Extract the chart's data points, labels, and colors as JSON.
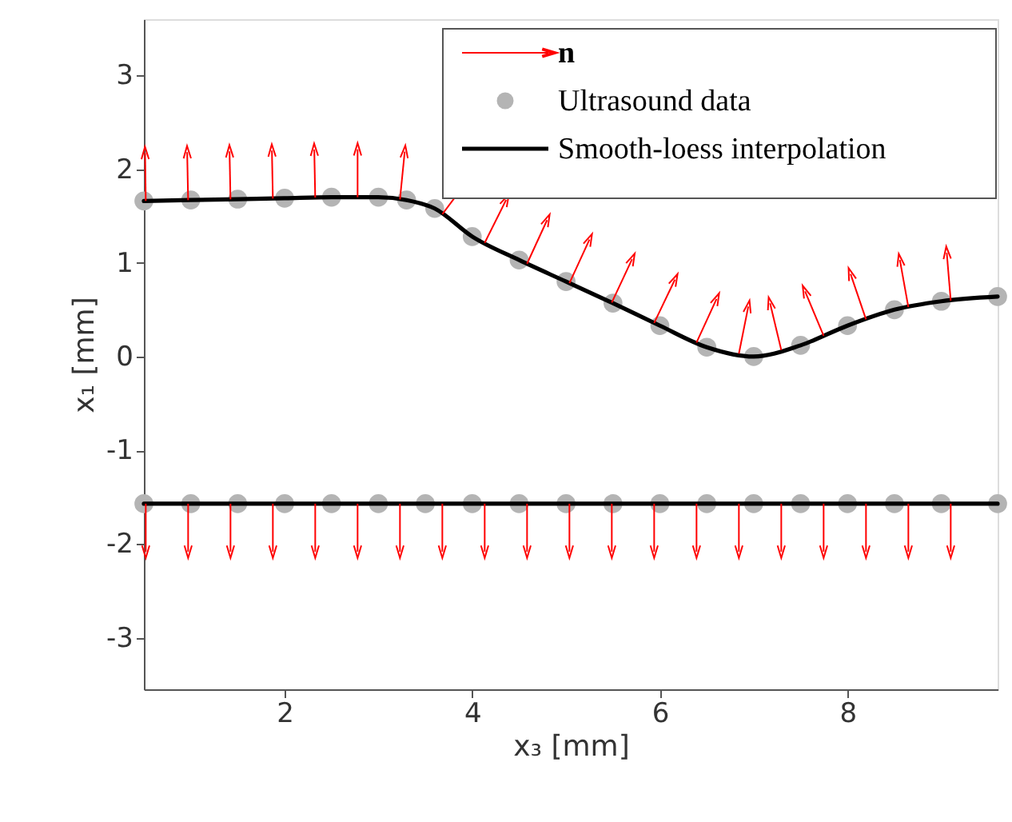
{
  "chart_data": {
    "type": "line",
    "xlabel": "x₃ [mm]",
    "ylabel": "x₁ [mm]",
    "xlim": [
      0.5,
      9.6
    ],
    "ylim": [
      -3.55,
      3.6
    ],
    "xticks": [
      2,
      4,
      6,
      8
    ],
    "yticks": [
      -3,
      -2,
      -1,
      0,
      1,
      2,
      3
    ],
    "grid": false,
    "legend": "top right",
    "series": [
      {
        "name": "n",
        "type": "other",
        "color": "#ff0000"
      },
      {
        "name": "Ultrasound data",
        "type": "scatter",
        "color": "#b4b4b4",
        "x": [
          0.5,
          1,
          1.5,
          2,
          2.5,
          3,
          3.3,
          3.6,
          4,
          4.5,
          5,
          5.5,
          6,
          6.5,
          7,
          7.5,
          8,
          8.5,
          9,
          9.6,
          0.5,
          1,
          1.5,
          2,
          2.5,
          3,
          3.5,
          4,
          4.5,
          5,
          5.5,
          6,
          6.5,
          7,
          7.5,
          8,
          8.5,
          9,
          9.6
        ],
        "values": [
          1.66,
          1.67,
          1.68,
          1.69,
          1.7,
          1.7,
          1.67,
          1.58,
          1.28,
          1.03,
          0.8,
          0.57,
          0.33,
          0.1,
          0.0,
          0.12,
          0.33,
          0.5,
          0.59,
          0.64,
          -1.57,
          -1.57,
          -1.57,
          -1.57,
          -1.57,
          -1.57,
          -1.57,
          -1.57,
          -1.57,
          -1.57,
          -1.57,
          -1.57,
          -1.57,
          -1.57,
          -1.57,
          -1.57,
          -1.57,
          -1.57,
          -1.57
        ]
      },
      {
        "name": "Smooth-loess interpolation",
        "type": "line",
        "color": "#000000",
        "x": [
          0.5,
          1,
          1.5,
          2,
          2.5,
          3,
          3.3,
          3.6,
          4,
          4.5,
          5,
          5.5,
          6,
          6.5,
          7,
          7.5,
          8,
          8.5,
          9,
          9.6
        ],
        "values": [
          1.66,
          1.67,
          1.68,
          1.69,
          1.7,
          1.7,
          1.67,
          1.58,
          1.28,
          1.03,
          0.8,
          0.57,
          0.33,
          0.1,
          0.0,
          0.12,
          0.33,
          0.5,
          0.59,
          0.64
        ]
      },
      {
        "type": "line",
        "color": "#000000",
        "x": [
          0.5,
          9.6
        ],
        "values": [
          -1.57,
          -1.57
        ]
      }
    ]
  }
}
